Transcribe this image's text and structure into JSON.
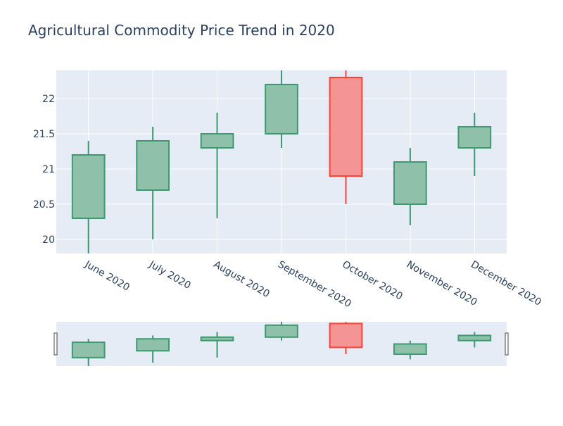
{
  "chart_data": {
    "type": "candlestick",
    "title": "Agricultural Commodity Price Trend in 2020",
    "xlabel": "",
    "ylabel": "",
    "categories": [
      "June 2020",
      "July 2020",
      "August 2020",
      "September 2020",
      "October 2020",
      "November 2020",
      "December 2020"
    ],
    "open": [
      20.3,
      20.7,
      21.3,
      21.5,
      22.3,
      20.5,
      21.3
    ],
    "high": [
      21.4,
      21.6,
      21.8,
      22.4,
      22.4,
      21.3,
      21.8
    ],
    "low": [
      19.8,
      20.0,
      20.3,
      21.3,
      20.5,
      20.2,
      20.9
    ],
    "close": [
      21.2,
      21.4,
      21.5,
      22.2,
      20.9,
      21.1,
      21.6
    ],
    "ylim": [
      19.8,
      22.4
    ],
    "yticks": [
      20,
      20.5,
      21,
      21.5,
      22
    ],
    "ytick_labels": [
      "20",
      "20.5",
      "21",
      "21.5",
      "22"
    ],
    "grid": true,
    "rangeslider": true,
    "colors": {
      "increasing_fill": "#8fc1aa",
      "increasing_line": "#3d9970",
      "decreasing_fill": "#f59494",
      "decreasing_line": "#ff4136",
      "plot_bg": "#e5ecf6",
      "text": "#2a3f5f"
    }
  }
}
